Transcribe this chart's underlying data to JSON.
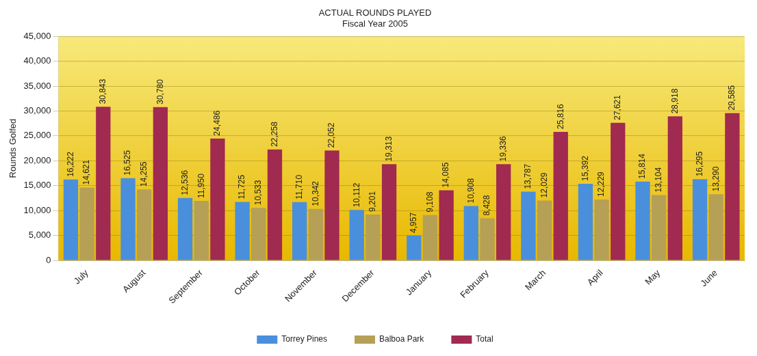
{
  "chart_data": {
    "type": "bar",
    "title": "ACTUAL ROUNDS PLAYED",
    "subtitle": "Fiscal Year 2005",
    "ylabel": "Rounds Golfed",
    "categories": [
      "July",
      "August",
      "September",
      "October",
      "November",
      "December",
      "January",
      "February",
      "March",
      "April",
      "May",
      "June"
    ],
    "series": [
      {
        "name": "Torrey Pines",
        "color": "#4a8fdc",
        "values": [
          16222,
          16525,
          12536,
          11725,
          11710,
          10112,
          4957,
          10908,
          13787,
          15392,
          15814,
          16295
        ],
        "value_labels": [
          "16,222",
          "16,525",
          "12,536",
          "11,725",
          "11,710",
          "10,112",
          "4,957",
          "10,908",
          "13,787",
          "15,392",
          "15,814",
          "16,295"
        ]
      },
      {
        "name": "Balboa Park",
        "color": "#b5a055",
        "values": [
          14621,
          14255,
          11950,
          10533,
          10342,
          9201,
          9108,
          8428,
          12029,
          12229,
          13104,
          13290
        ],
        "value_labels": [
          "14,621",
          "14,255",
          "11,950",
          "10,533",
          "10,342",
          "9,201",
          "9,108",
          "8,428",
          "12,029",
          "12,229",
          "13,104",
          "13,290"
        ]
      },
      {
        "name": "Total",
        "color": "#a02a50",
        "values": [
          30843,
          30780,
          24486,
          22258,
          22052,
          19313,
          14085,
          19336,
          25816,
          27621,
          28918,
          29585
        ],
        "value_labels": [
          "30,843",
          "30,780",
          "24,486",
          "22,258",
          "22,052",
          "19,313",
          "14,085",
          "19,336",
          "25,816",
          "27,621",
          "28,918",
          "29,585"
        ]
      }
    ],
    "ylim": [
      0,
      45000
    ],
    "yticks": [
      {
        "value": 0,
        "label": "0"
      },
      {
        "value": 5000,
        "label": "5,000"
      },
      {
        "value": 10000,
        "label": "10,000"
      },
      {
        "value": 15000,
        "label": "15,000"
      },
      {
        "value": 20000,
        "label": "20,000"
      },
      {
        "value": 25000,
        "label": "25,000"
      },
      {
        "value": 30000,
        "label": "30,000"
      },
      {
        "value": 35000,
        "label": "35,000"
      },
      {
        "value": 40000,
        "label": "40,000"
      },
      {
        "value": 45000,
        "label": "45,000"
      }
    ],
    "grid": "y",
    "legend": "bottom"
  }
}
